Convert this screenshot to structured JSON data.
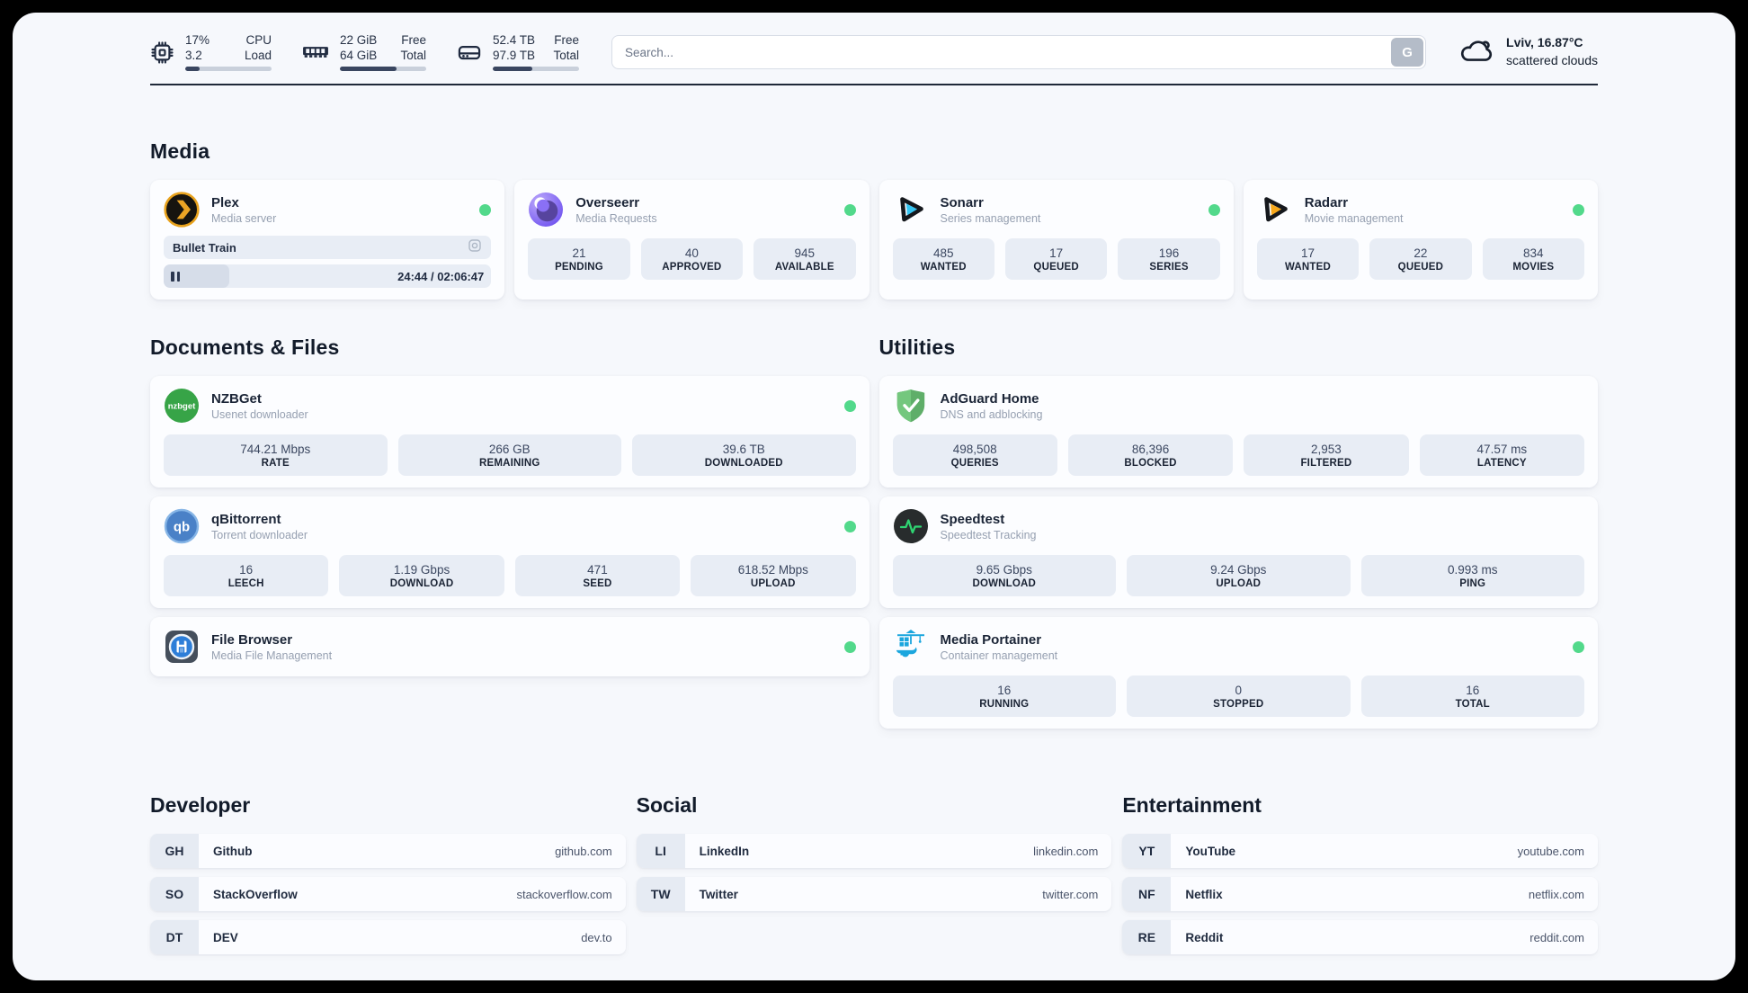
{
  "colors": {
    "status_online": "#52d98b",
    "divider": "#1f2939",
    "page_bg": "#f6f8fc"
  },
  "header": {
    "system_stats": [
      {
        "icon": "cpu-chip-icon",
        "value_top": "17%",
        "value_bottom": "3.2",
        "label_top": "CPU",
        "label_bottom": "Load",
        "progress_pct": 17
      },
      {
        "icon": "memory-icon",
        "value_top": "22 GiB",
        "value_bottom": "64 GiB",
        "label_top": "Free",
        "label_bottom": "Total",
        "progress_pct": 66
      },
      {
        "icon": "hard-drive-icon",
        "value_top": "52.4 TB",
        "value_bottom": "97.9 TB",
        "label_top": "Free",
        "label_bottom": "Total",
        "progress_pct": 46
      }
    ],
    "search": {
      "placeholder": "Search...",
      "button_label": "G"
    },
    "weather": {
      "location": "Lviv, 16.87°C",
      "condition": "scattered clouds"
    }
  },
  "sections": {
    "media": {
      "title": "Media",
      "apps": [
        {
          "name": "Plex",
          "subtitle": "Media server",
          "online": true,
          "player": {
            "track": "Bullet Train",
            "time": "24:44 / 02:06:47",
            "progress_pct": 20
          }
        },
        {
          "name": "Overseerr",
          "subtitle": "Media Requests",
          "online": true,
          "stats": [
            {
              "value": "21",
              "label": "PENDING"
            },
            {
              "value": "40",
              "label": "APPROVED"
            },
            {
              "value": "945",
              "label": "AVAILABLE"
            }
          ]
        },
        {
          "name": "Sonarr",
          "subtitle": "Series management",
          "online": true,
          "stats": [
            {
              "value": "485",
              "label": "WANTED"
            },
            {
              "value": "17",
              "label": "QUEUED"
            },
            {
              "value": "196",
              "label": "SERIES"
            }
          ]
        },
        {
          "name": "Radarr",
          "subtitle": "Movie management",
          "online": true,
          "stats": [
            {
              "value": "17",
              "label": "WANTED"
            },
            {
              "value": "22",
              "label": "QUEUED"
            },
            {
              "value": "834",
              "label": "MOVIES"
            }
          ]
        }
      ]
    },
    "documents": {
      "title": "Documents & Files",
      "apps": [
        {
          "name": "NZBGet",
          "subtitle": "Usenet downloader",
          "online": true,
          "stats": [
            {
              "value": "744.21 Mbps",
              "label": "RATE"
            },
            {
              "value": "266 GB",
              "label": "REMAINING"
            },
            {
              "value": "39.6 TB",
              "label": "DOWNLOADED"
            }
          ]
        },
        {
          "name": "qBittorrent",
          "subtitle": "Torrent downloader",
          "online": true,
          "stats": [
            {
              "value": "16",
              "label": "LEECH"
            },
            {
              "value": "1.19 Gbps",
              "label": "DOWNLOAD"
            },
            {
              "value": "471",
              "label": "SEED"
            },
            {
              "value": "618.52 Mbps",
              "label": "UPLOAD"
            }
          ]
        },
        {
          "name": "File Browser",
          "subtitle": "Media File Management",
          "online": true,
          "stats": []
        }
      ]
    },
    "utilities": {
      "title": "Utilities",
      "apps": [
        {
          "name": "AdGuard Home",
          "subtitle": "DNS and adblocking",
          "online": false,
          "stats": [
            {
              "value": "498,508",
              "label": "QUERIES"
            },
            {
              "value": "86,396",
              "label": "BLOCKED"
            },
            {
              "value": "2,953",
              "label": "FILTERED"
            },
            {
              "value": "47.57 ms",
              "label": "LATENCY"
            }
          ]
        },
        {
          "name": "Speedtest",
          "subtitle": "Speedtest Tracking",
          "online": false,
          "stats": [
            {
              "value": "9.65 Gbps",
              "label": "DOWNLOAD"
            },
            {
              "value": "9.24 Gbps",
              "label": "UPLOAD"
            },
            {
              "value": "0.993 ms",
              "label": "PING"
            }
          ]
        },
        {
          "name": "Media Portainer",
          "subtitle": "Container management",
          "online": true,
          "stats": [
            {
              "value": "16",
              "label": "RUNNING"
            },
            {
              "value": "0",
              "label": "STOPPED"
            },
            {
              "value": "16",
              "label": "TOTAL"
            }
          ]
        }
      ]
    }
  },
  "bookmarks": [
    {
      "title": "Developer",
      "items": [
        {
          "abbr": "GH",
          "name": "Github",
          "url": "github.com"
        },
        {
          "abbr": "SO",
          "name": "StackOverflow",
          "url": "stackoverflow.com"
        },
        {
          "abbr": "DT",
          "name": "DEV",
          "url": "dev.to"
        }
      ]
    },
    {
      "title": "Social",
      "items": [
        {
          "abbr": "LI",
          "name": "LinkedIn",
          "url": "linkedin.com"
        },
        {
          "abbr": "TW",
          "name": "Twitter",
          "url": "twitter.com"
        }
      ]
    },
    {
      "title": "Entertainment",
      "items": [
        {
          "abbr": "YT",
          "name": "YouTube",
          "url": "youtube.com"
        },
        {
          "abbr": "NF",
          "name": "Netflix",
          "url": "netflix.com"
        },
        {
          "abbr": "RE",
          "name": "Reddit",
          "url": "reddit.com"
        }
      ]
    }
  ]
}
